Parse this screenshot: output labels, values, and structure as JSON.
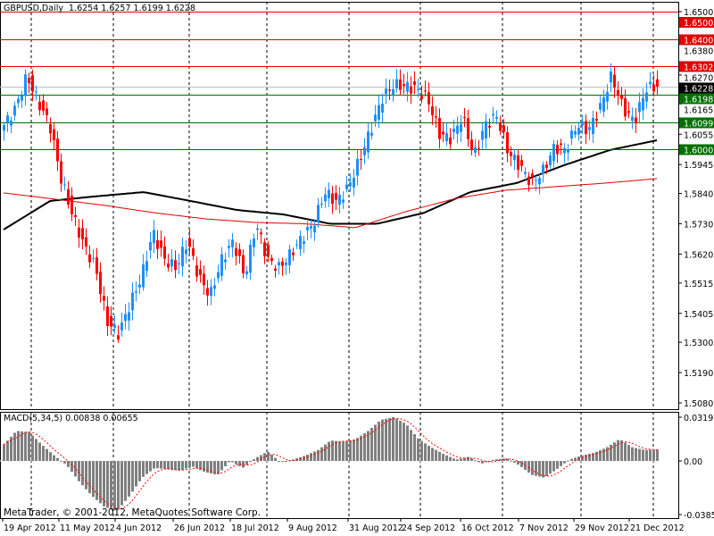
{
  "header": {
    "symbol_info": "GBPUSD,Daily  1.6254 1.6257 1.6199 1.6228"
  },
  "macd_header": "MACD(5,34,5) 0.00838 0.00655",
  "copyright": "MetaTrader, © 2001-2012, MetaQuotes Software Corp.",
  "colors": {
    "bull": "#1E90FF",
    "bear": "#FF0000",
    "ma_fast": "#000000",
    "ma_slow": "#E00000",
    "resistance": "#E00000",
    "support": "#007000",
    "macd_hist": "#808080",
    "macd_signal": "#FF0000"
  },
  "chart_data": [
    {
      "type": "candlestick",
      "title": "GBPUSD,Daily",
      "ylim": [
        1.508,
        1.65
      ],
      "y_ticks": [
        "1.6500",
        "1.6380",
        "1.6270",
        "1.6165",
        "1.6055",
        "1.5945",
        "1.5840",
        "1.5730",
        "1.5620",
        "1.5515",
        "1.5405",
        "1.5300",
        "1.5190",
        "1.5080"
      ],
      "x_ticks": [
        "19 Apr 2012",
        "11 May 2012",
        "4 Jun 2012",
        "26 Jun 2012",
        "18 Jul 2012",
        "9 Aug 2012",
        "31 Aug 2012",
        "24 Sep 2012",
        "16 Oct 2012",
        "7 Nov 2012",
        "29 Nov 2012",
        "21 Dec 2012"
      ],
      "last_bar": {
        "open": 1.6254,
        "high": 1.6257,
        "low": 1.6199,
        "close": 1.6228
      },
      "close_samples": [
        1.6088,
        1.615,
        1.6267,
        1.617,
        1.609,
        1.589,
        1.576,
        1.565,
        1.557,
        1.5375,
        1.533,
        1.544,
        1.5537,
        1.57,
        1.56,
        1.557,
        1.5667,
        1.5537,
        1.547,
        1.56,
        1.5667,
        1.5537,
        1.573,
        1.56,
        1.557,
        1.562,
        1.568,
        1.573,
        1.5845,
        1.581,
        1.586,
        1.596,
        1.6072,
        1.6186,
        1.6234,
        1.623,
        1.622,
        1.618,
        1.6056,
        1.604,
        1.612,
        1.5975,
        1.609,
        1.612,
        1.599,
        1.594,
        1.5878,
        1.592,
        1.6007,
        1.6,
        1.609,
        1.607,
        1.615,
        1.6267,
        1.615,
        1.61,
        1.622,
        1.6228
      ],
      "moving_averages": [
        {
          "values": [
            1.5709,
            1.5813,
            1.583,
            1.5845,
            1.5813,
            1.578,
            1.5764,
            1.573,
            1.573,
            1.5769,
            1.5845,
            1.5878,
            1.5942,
            1.5998,
            1.6033
          ]
        },
        {
          "values": [
            1.5842,
            1.582,
            1.5797,
            1.577,
            1.5748,
            1.5735,
            1.573,
            1.5716,
            1.5774,
            1.5822,
            1.5852,
            1.5865,
            1.5878,
            1.5894
          ]
        }
      ],
      "levels": [
        {
          "value": 1.65,
          "label": "1.6500",
          "kind": "resistance"
        },
        {
          "value": 1.64,
          "label": "1.6400",
          "kind": "resistance"
        },
        {
          "value": 1.6302,
          "label": "1.6302",
          "kind": "resistance"
        },
        {
          "value": 1.6228,
          "label": "1.6228",
          "kind": "current"
        },
        {
          "value": 1.6198,
          "label": "1.6198",
          "kind": "support"
        },
        {
          "value": 1.6099,
          "label": "1.6099",
          "kind": "support"
        },
        {
          "value": 1.6,
          "label": "1.6000",
          "kind": "support"
        }
      ]
    },
    {
      "type": "bar",
      "title": "MACD(5,34,5)",
      "ylim": [
        -0.03851,
        0.03193
      ],
      "y_ticks": [
        "0.03193",
        "0.00",
        "-0.03851"
      ],
      "macd": 0.00838,
      "signal": 0.00655,
      "histogram_samples": [
        0.012,
        0.022,
        0.021,
        0.012,
        0.004,
        -0.003,
        -0.015,
        -0.025,
        -0.033,
        -0.036,
        -0.025,
        -0.012,
        -0.005,
        -0.006,
        -0.007,
        -0.004,
        -0.008,
        -0.01,
        0.0,
        -0.005,
        0.002,
        0.007,
        -0.001,
        0.001,
        0.004,
        0.008,
        0.015,
        0.014,
        0.016,
        0.022,
        0.03,
        0.032,
        0.027,
        0.016,
        0.01,
        0.005,
        0.001,
        0.003,
        -0.002,
        0.001,
        0.002,
        -0.003,
        -0.01,
        -0.012,
        -0.006,
        0.001,
        0.004,
        0.006,
        0.01,
        0.016,
        0.01,
        0.008,
        0.00838
      ]
    }
  ]
}
